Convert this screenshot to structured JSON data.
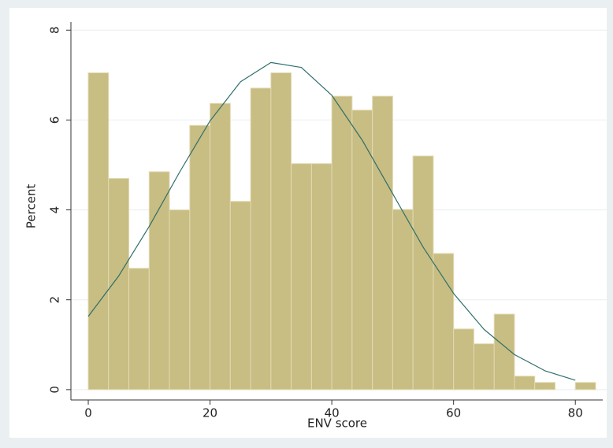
{
  "chart_data": {
    "type": "histogram",
    "x_label": "ENV score",
    "y_label": "Percent",
    "bins": [
      0,
      3.33,
      6.67,
      10,
      13.33,
      16.67,
      20,
      23.33,
      26.67,
      30,
      33.33,
      36.67,
      40,
      43.33,
      46.67,
      50,
      53.33,
      56.67,
      60,
      63.33,
      66.67,
      70,
      73.33,
      76.67,
      80,
      83.33
    ],
    "values": [
      7.05,
      4.7,
      2.7,
      4.85,
      4.0,
      5.88,
      6.37,
      4.19,
      6.71,
      7.05,
      5.03,
      5.03,
      6.53,
      6.22,
      6.53,
      4.01,
      5.2,
      3.03,
      1.35,
      1.02,
      1.68,
      0.3,
      0.16,
      0,
      0.16
    ],
    "color": "#c8bd82",
    "edge_color": "#e2dab4",
    "curve": {
      "x": [
        0,
        5,
        10,
        15,
        20,
        25,
        30,
        35,
        40,
        45,
        50,
        55,
        60,
        65,
        70,
        75,
        80
      ],
      "values": [
        1.63,
        2.53,
        3.63,
        4.84,
        5.98,
        6.85,
        7.28,
        7.17,
        6.55,
        5.55,
        4.36,
        3.17,
        2.14,
        1.34,
        0.78,
        0.42,
        0.21
      ],
      "color": "#2e6f6a"
    },
    "xlim": [
      -2.85,
      84.5
    ],
    "ylim": [
      -0.23,
      8.18
    ],
    "xticks": [
      0,
      20,
      40,
      60,
      80
    ],
    "yticks": [
      0,
      2,
      4,
      6,
      8
    ],
    "grid": true
  }
}
